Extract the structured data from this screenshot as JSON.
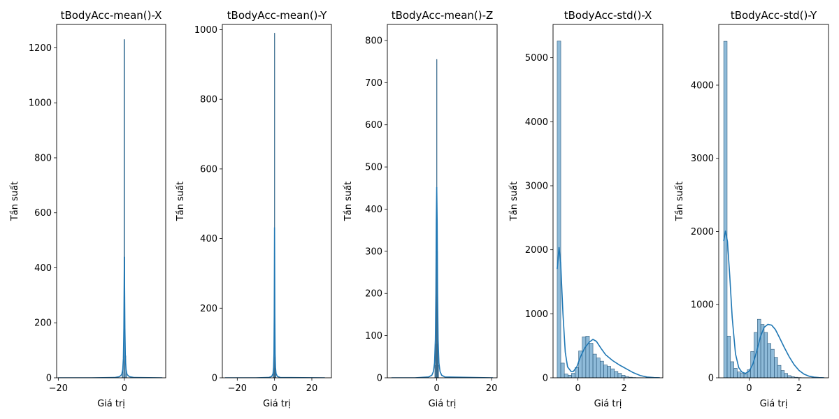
{
  "chart_data": [
    {
      "type": "histogram",
      "title": "tBodyAcc-mean()-X",
      "xlabel": "Giá trị",
      "ylabel": "Tần suất",
      "xlim": [
        -20.5,
        12.5
      ],
      "ylim": [
        0,
        1285
      ],
      "xticks": [
        -20,
        0
      ],
      "yticks": [
        0,
        200,
        400,
        600,
        800,
        1000,
        1200
      ],
      "bars": {
        "start": -19.5,
        "width": 0.3,
        "counts": [
          [
            -0.6,
            20
          ],
          [
            -0.3,
            60
          ],
          [
            0.0,
            1230
          ],
          [
            0.3,
            80
          ],
          [
            0.6,
            15
          ]
        ]
      },
      "kde": [
        [
          -20,
          0
        ],
        [
          -10,
          0
        ],
        [
          -3,
          1
        ],
        [
          -1.5,
          4
        ],
        [
          -0.8,
          12
        ],
        [
          -0.5,
          30
        ],
        [
          -0.3,
          70
        ],
        [
          -0.15,
          180
        ],
        [
          0,
          440
        ],
        [
          0.15,
          180
        ],
        [
          0.3,
          70
        ],
        [
          0.5,
          30
        ],
        [
          0.8,
          12
        ],
        [
          1.5,
          4
        ],
        [
          3,
          1
        ],
        [
          11.5,
          0
        ]
      ]
    },
    {
      "type": "histogram",
      "title": "tBodyAcc-mean()-Y",
      "xlabel": "Giá trị",
      "ylabel": "Tần suất",
      "xlim": [
        -28,
        30.5
      ],
      "ylim": [
        0,
        1015
      ],
      "xticks": [
        -20,
        0,
        20
      ],
      "yticks": [
        0,
        200,
        400,
        600,
        800,
        1000
      ],
      "bars": {
        "start": -26,
        "width": 0.3,
        "counts": [
          [
            -0.6,
            15
          ],
          [
            -0.3,
            60
          ],
          [
            0.0,
            990
          ],
          [
            0.3,
            60
          ],
          [
            0.6,
            15
          ]
        ]
      },
      "kde": [
        [
          -26.5,
          0
        ],
        [
          -10,
          0
        ],
        [
          -3,
          1
        ],
        [
          -1.5,
          4
        ],
        [
          -0.8,
          12
        ],
        [
          -0.5,
          30
        ],
        [
          -0.3,
          70
        ],
        [
          -0.15,
          180
        ],
        [
          0,
          432
        ],
        [
          0.15,
          180
        ],
        [
          0.3,
          70
        ],
        [
          0.5,
          30
        ],
        [
          0.8,
          12
        ],
        [
          1.5,
          4
        ],
        [
          3,
          1
        ],
        [
          27,
          0
        ]
      ]
    },
    {
      "type": "histogram",
      "title": "tBodyAcc-mean()-Z",
      "xlabel": "Giá trị",
      "ylabel": "Tần suất",
      "xlim": [
        -18,
        22
      ],
      "ylim": [
        0,
        838
      ],
      "xticks": [
        0,
        20
      ],
      "yticks": [
        0,
        100,
        200,
        300,
        400,
        500,
        600,
        700,
        800
      ],
      "bars": {
        "start": -16.5,
        "width": 0.2,
        "counts": [
          [
            -0.6,
            30
          ],
          [
            -0.4,
            80
          ],
          [
            -0.2,
            300
          ],
          [
            0.0,
            755
          ],
          [
            0.2,
            300
          ],
          [
            0.4,
            80
          ],
          [
            0.6,
            30
          ]
        ]
      },
      "kde": [
        [
          -16.5,
          0
        ],
        [
          -8,
          0
        ],
        [
          -3,
          2
        ],
        [
          -1.8,
          6
        ],
        [
          -1.2,
          15
        ],
        [
          -0.8,
          35
        ],
        [
          -0.5,
          90
        ],
        [
          -0.3,
          200
        ],
        [
          -0.15,
          370
        ],
        [
          0,
          452
        ],
        [
          0.15,
          370
        ],
        [
          0.3,
          200
        ],
        [
          0.5,
          90
        ],
        [
          0.8,
          35
        ],
        [
          1.2,
          15
        ],
        [
          1.8,
          6
        ],
        [
          3,
          2
        ],
        [
          20.5,
          0
        ]
      ]
    },
    {
      "type": "histogram",
      "title": "tBodyAcc-std()-X",
      "xlabel": "Giá trị",
      "ylabel": "Tần suất",
      "xlim": [
        -1.08,
        3.68
      ],
      "ylim": [
        0,
        5520
      ],
      "xticks": [
        0,
        2
      ],
      "yticks": [
        0,
        1000,
        2000,
        3000,
        4000,
        5000
      ],
      "bars": {
        "start": -0.9,
        "width": 0.155,
        "counts": [
          5260,
          230,
          60,
          40,
          70,
          160,
          420,
          640,
          650,
          540,
          370,
          310,
          260,
          200,
          180,
          140,
          100,
          70,
          40,
          20,
          10,
          5,
          3,
          2,
          1,
          1,
          1,
          1,
          1,
          1
        ]
      },
      "kde": [
        [
          -0.9,
          1700
        ],
        [
          -0.82,
          2040
        ],
        [
          -0.75,
          1800
        ],
        [
          -0.65,
          1000
        ],
        [
          -0.55,
          400
        ],
        [
          -0.45,
          170
        ],
        [
          -0.3,
          100
        ],
        [
          -0.2,
          100
        ],
        [
          -0.05,
          170
        ],
        [
          0.1,
          320
        ],
        [
          0.3,
          470
        ],
        [
          0.5,
          560
        ],
        [
          0.65,
          600
        ],
        [
          0.8,
          570
        ],
        [
          1.0,
          460
        ],
        [
          1.2,
          360
        ],
        [
          1.5,
          270
        ],
        [
          1.8,
          200
        ],
        [
          2.1,
          140
        ],
        [
          2.4,
          80
        ],
        [
          2.7,
          35
        ],
        [
          3.0,
          12
        ],
        [
          3.3,
          4
        ],
        [
          3.55,
          1
        ]
      ]
    },
    {
      "type": "histogram",
      "title": "tBodyAcc-std()-Y",
      "xlabel": "Giá trị",
      "ylabel": "Tần suất",
      "xlim": [
        -1.22,
        3.18
      ],
      "ylim": [
        0,
        4830
      ],
      "xticks": [
        0,
        2
      ],
      "yticks": [
        0,
        1000,
        2000,
        3000,
        4000
      ],
      "bars": {
        "start": -1.02,
        "width": 0.135,
        "counts": [
          4600,
          570,
          220,
          130,
          80,
          60,
          50,
          110,
          360,
          620,
          800,
          730,
          620,
          470,
          390,
          280,
          170,
          100,
          60,
          30,
          15,
          8,
          4,
          2,
          1,
          1,
          1,
          1,
          1,
          1
        ]
      },
      "kde": [
        [
          -1.02,
          1870
        ],
        [
          -0.95,
          2010
        ],
        [
          -0.87,
          1860
        ],
        [
          -0.78,
          1400
        ],
        [
          -0.68,
          820
        ],
        [
          -0.55,
          330
        ],
        [
          -0.42,
          140
        ],
        [
          -0.3,
          80
        ],
        [
          -0.15,
          60
        ],
        [
          0.0,
          90
        ],
        [
          0.15,
          190
        ],
        [
          0.3,
          360
        ],
        [
          0.45,
          560
        ],
        [
          0.6,
          690
        ],
        [
          0.75,
          730
        ],
        [
          0.9,
          720
        ],
        [
          1.05,
          660
        ],
        [
          1.2,
          560
        ],
        [
          1.4,
          420
        ],
        [
          1.6,
          290
        ],
        [
          1.8,
          180
        ],
        [
          2.0,
          100
        ],
        [
          2.2,
          50
        ],
        [
          2.4,
          22
        ],
        [
          2.6,
          9
        ],
        [
          2.8,
          3
        ],
        [
          3.0,
          1
        ]
      ]
    }
  ]
}
